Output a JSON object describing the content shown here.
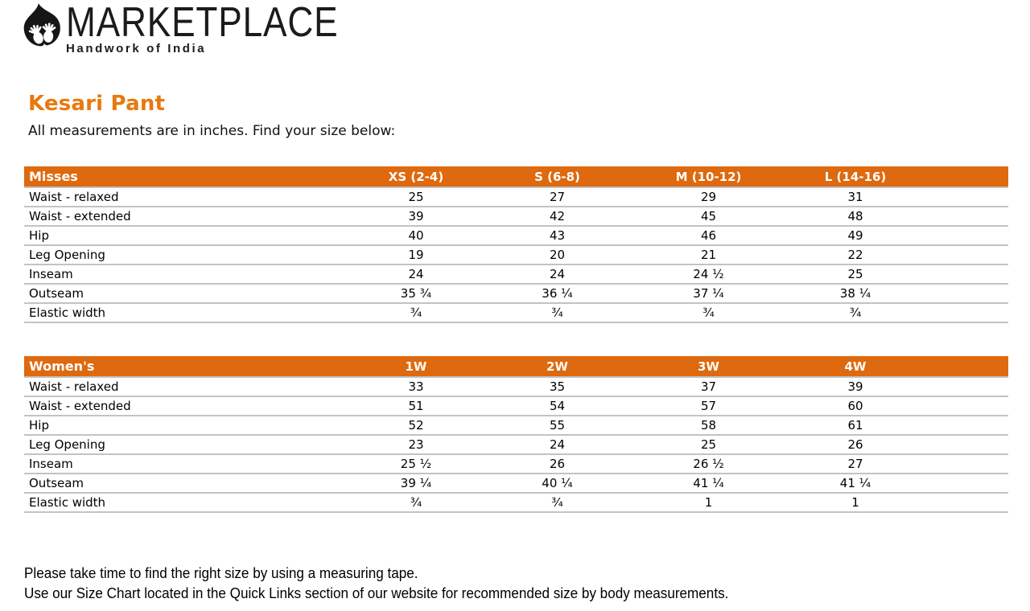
{
  "brand": {
    "name": "MARKETPLACE",
    "tagline": "Handwork of India",
    "icon": "leaf-with-hands-icon"
  },
  "page": {
    "title": "Kesari Pant",
    "note": "All measurements are in inches. Find your size below:",
    "footer_lines": [
      "Please take time to find the right size by using a measuring tape.",
      "Use our Size Chart located in the Quick Links section of our website for recommended size by body measurements."
    ]
  },
  "colors": {
    "header_orange": "#DE690E",
    "title_orange": "#E8790F",
    "row_separator": "#c3c3c3",
    "logo_black": "#1b1b1b"
  },
  "tables": [
    {
      "title": "Misses",
      "sizes": [
        "XS (2-4)",
        "S (6-8)",
        "M (10-12)",
        "L (14-16)"
      ],
      "rows": [
        {
          "label": "Waist - relaxed",
          "values": [
            "25",
            "27",
            "29",
            "31"
          ]
        },
        {
          "label": "Waist - extended",
          "values": [
            "39",
            "42",
            "45",
            "48"
          ]
        },
        {
          "label": "Hip",
          "values": [
            "40",
            "43",
            "46",
            "49"
          ]
        },
        {
          "label": "Leg Opening",
          "values": [
            "19",
            "20",
            "21",
            "22"
          ]
        },
        {
          "label": "Inseam",
          "values": [
            "24",
            "24",
            "24 ½",
            "25"
          ]
        },
        {
          "label": "Outseam",
          "values": [
            "35 ¾",
            "36 ¼",
            "37 ¼",
            "38 ¼"
          ]
        },
        {
          "label": "Elastic width",
          "values": [
            "¾",
            "¾",
            "¾",
            "¾"
          ]
        }
      ]
    },
    {
      "title": "Women's",
      "sizes": [
        "1W",
        "2W",
        "3W",
        "4W"
      ],
      "rows": [
        {
          "label": "Waist - relaxed",
          "values": [
            "33",
            "35",
            "37",
            "39"
          ]
        },
        {
          "label": "Waist - extended",
          "values": [
            "51",
            "54",
            "57",
            "60"
          ]
        },
        {
          "label": "Hip",
          "values": [
            "52",
            "55",
            "58",
            "61"
          ]
        },
        {
          "label": "Leg Opening",
          "values": [
            "23",
            "24",
            "25",
            "26"
          ]
        },
        {
          "label": "Inseam",
          "values": [
            "25 ½",
            "26",
            "26 ½",
            "27"
          ]
        },
        {
          "label": "Outseam",
          "values": [
            "39 ¼",
            "40 ¼",
            "41 ¼",
            "41 ¼"
          ]
        },
        {
          "label": "Elastic width",
          "values": [
            "¾",
            "¾",
            "1",
            "1"
          ]
        }
      ]
    }
  ]
}
